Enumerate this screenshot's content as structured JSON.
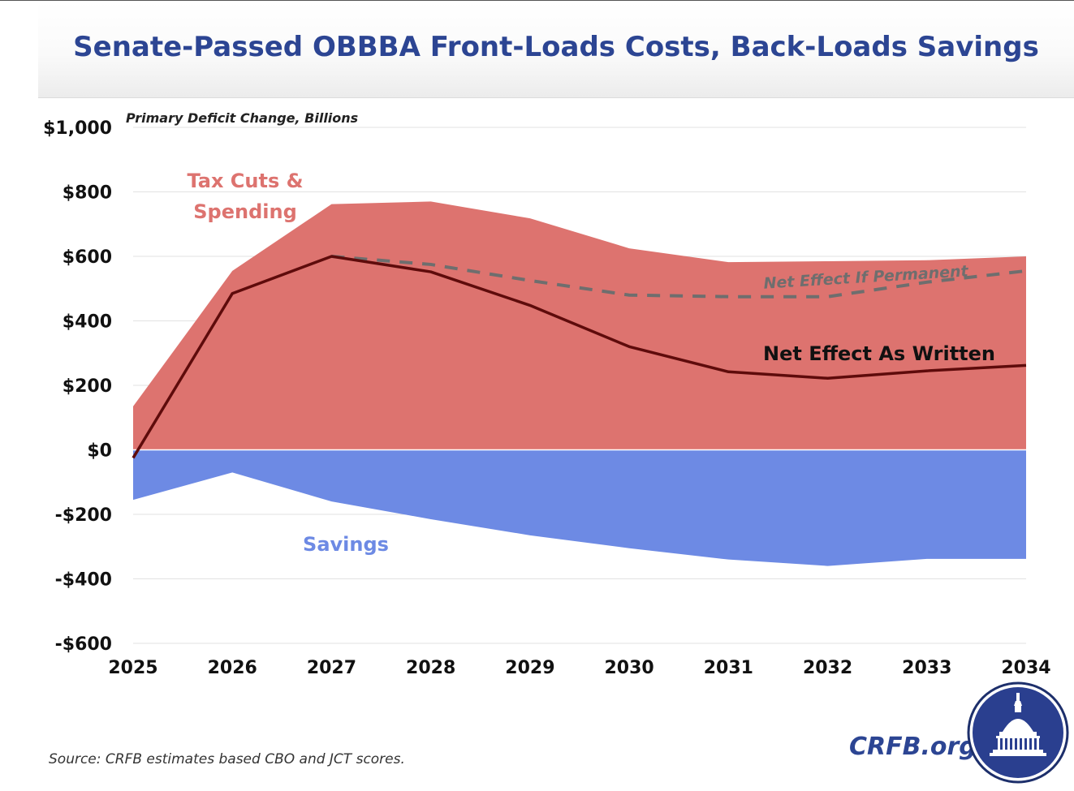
{
  "title": "Senate-Passed OBBBA Front-Loads Costs, Back-Loads Savings",
  "source_note": "Source: CRFB estimates based CBO and JCT scores.",
  "logo_text": "CRFB.org",
  "colors": {
    "title": "#2c4593",
    "costs_fill": "#dd736f",
    "savings_fill": "#6d8ae4",
    "net_as_written": "#5e0b0b",
    "net_permanent": "#6e6e6e",
    "costs_label": "#dd736f",
    "savings_label": "#6d8ae4"
  },
  "chart_data": {
    "type": "area",
    "subtitle": "Primary Deficit Change, Billions",
    "x": [
      2025,
      2026,
      2027,
      2028,
      2029,
      2030,
      2031,
      2032,
      2033,
      2034
    ],
    "xtick_labels": [
      "2025",
      "2026",
      "2027",
      "2028",
      "2029",
      "2030",
      "2031",
      "2032",
      "2033",
      "2034"
    ],
    "ylim": [
      -600,
      1000
    ],
    "yticks": [
      1000,
      800,
      600,
      400,
      200,
      0,
      -200,
      -400,
      -600
    ],
    "ytick_labels": [
      "$1,000",
      "$800",
      "$600",
      "$400",
      "$200",
      "$0",
      "-$200",
      "-$400",
      "-$600"
    ],
    "grid": true,
    "legend": "none",
    "series": [
      {
        "name": "Tax Cuts & Spending",
        "kind": "area",
        "values": [
          135,
          555,
          762,
          770,
          718,
          625,
          582,
          585,
          588,
          600
        ]
      },
      {
        "name": "Savings",
        "kind": "area",
        "values": [
          -155,
          -70,
          -160,
          -215,
          -265,
          -305,
          -340,
          -360,
          -338,
          -338
        ]
      },
      {
        "name": "Net Effect As Written",
        "kind": "line",
        "values": [
          -25,
          485,
          600,
          552,
          448,
          320,
          242,
          222,
          245,
          262
        ]
      },
      {
        "name": "Net Effect If Permanent",
        "kind": "dashed-line",
        "x_start": 2027,
        "values": [
          null,
          null,
          600,
          575,
          525,
          480,
          475,
          475,
          520,
          555
        ]
      }
    ],
    "annotations": [
      {
        "text": "Tax Cuts &"
      },
      {
        "text": "Spending"
      },
      {
        "text": "Savings"
      },
      {
        "text": "Net Effect As Written"
      },
      {
        "text": "Net Effect If Permanent"
      }
    ]
  }
}
